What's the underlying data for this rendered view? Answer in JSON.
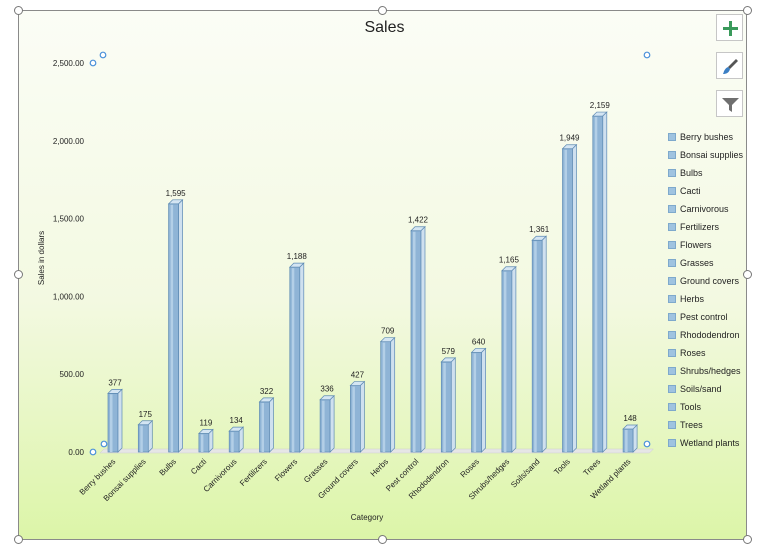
{
  "chart_data": {
    "type": "bar",
    "title": "Sales",
    "xlabel": "Category",
    "ylabel": "Sales in dollars",
    "ylim": [
      0,
      2500
    ],
    "yticks": [
      "0.00",
      "500.00",
      "1,000.00",
      "1,500.00",
      "2,000.00",
      "2,500.00"
    ],
    "categories": [
      "Berry bushes",
      "Bonsai supplies",
      "Bulbs",
      "Cacti",
      "Carnivorous",
      "Fertilizers",
      "Flowers",
      "Grasses",
      "Ground covers",
      "Herbs",
      "Pest control",
      "Rhododendron",
      "Roses",
      "Shrubs/hedges",
      "Soils/sand",
      "Tools",
      "Trees",
      "Wetland plants"
    ],
    "values": [
      377,
      175,
      1595,
      119,
      134,
      322,
      1188,
      336,
      427,
      709,
      1422,
      579,
      640,
      1165,
      1361,
      1949,
      2159,
      148
    ],
    "data_labels": [
      "377",
      "175",
      "1,595",
      "119",
      "134",
      "322",
      "1,188",
      "336",
      "427",
      "709",
      "1,422",
      "579",
      "640",
      "1,165",
      "1,361",
      "1,949",
      "2,159",
      "148"
    ],
    "legend": {
      "position": "right",
      "entries": [
        "Berry bushes",
        "Bonsai supplies",
        "Bulbs",
        "Cacti",
        "Carnivorous",
        "Fertilizers",
        "Flowers",
        "Grasses",
        "Ground covers",
        "Herbs",
        "Pest control",
        "Rhododendron",
        "Roses",
        "Shrubs/hedges",
        "Soils/sand",
        "Tools",
        "Trees",
        "Wetland plants"
      ]
    },
    "grid": false,
    "bar_color": "#8fb4d6"
  },
  "tools": {
    "add_element_icon": "plus-icon",
    "style_icon": "paintbrush-icon",
    "filter_icon": "funnel-icon"
  }
}
